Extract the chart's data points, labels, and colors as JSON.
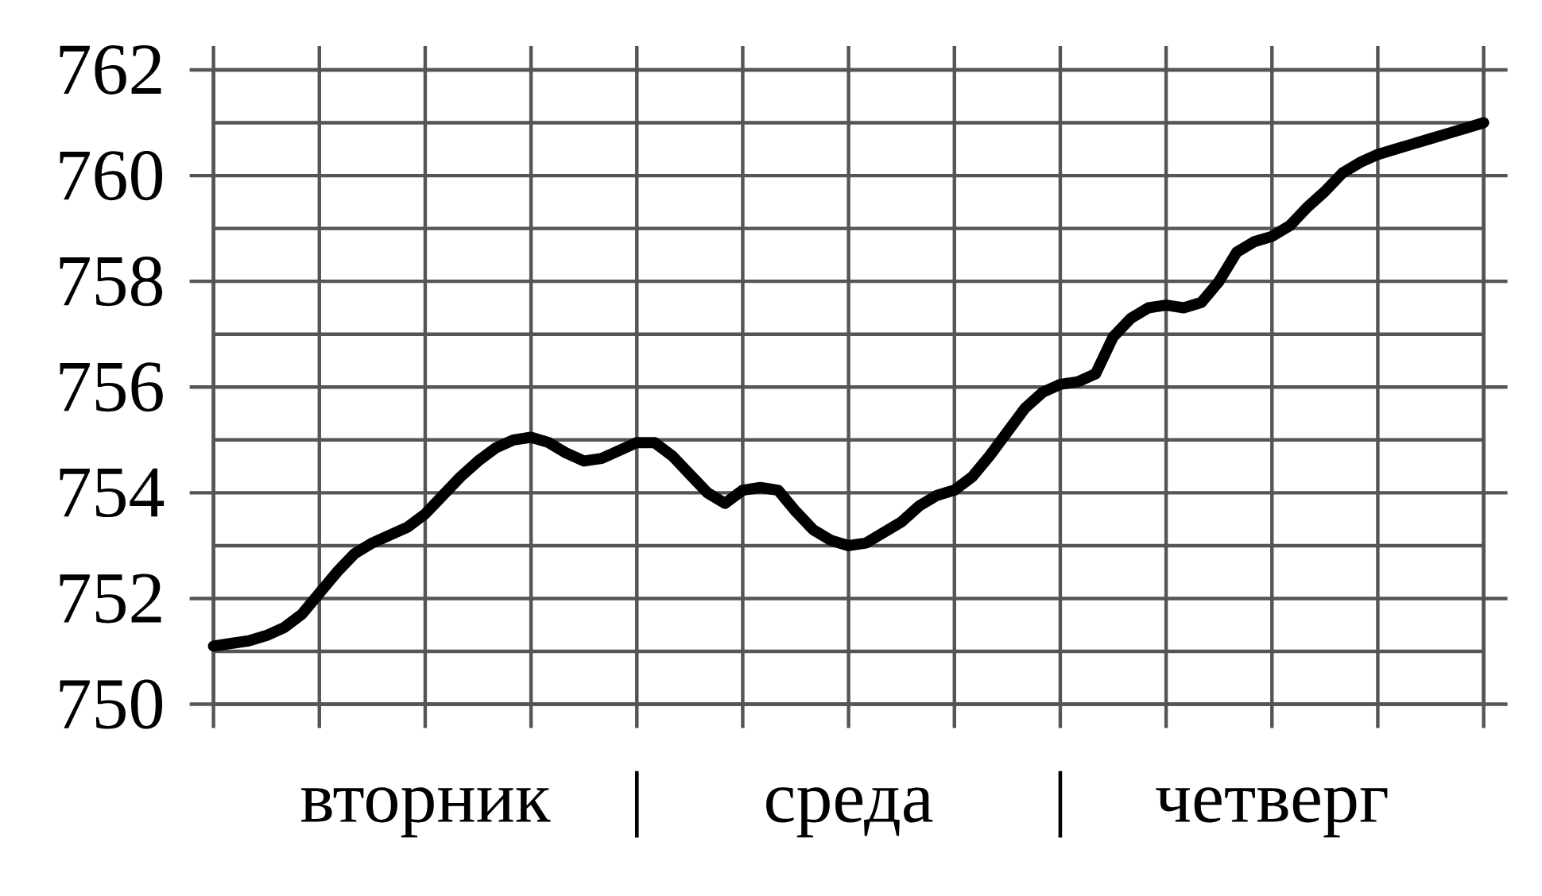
{
  "chart_data": {
    "type": "line",
    "categories": [
      null,
      null,
      null,
      null,
      null,
      null,
      null,
      null,
      null,
      null,
      null,
      null,
      "вторник",
      null,
      null,
      null,
      null,
      null,
      null,
      null,
      null,
      null,
      null,
      null,
      "|",
      null,
      null,
      null,
      null,
      null,
      null,
      null,
      null,
      null,
      null,
      null,
      "среда",
      null,
      null,
      null,
      null,
      null,
      null,
      null,
      null,
      null,
      null,
      null,
      "|",
      null,
      null,
      null,
      null,
      null,
      null,
      null,
      null,
      null,
      null,
      null,
      "четверг",
      null,
      null,
      null,
      null,
      null,
      null,
      null,
      null,
      null,
      null,
      null,
      null
    ],
    "series": [
      {
        "color": "#000000",
        "values": [
          751.1,
          751.15,
          751.2,
          751.3,
          751.45,
          751.7,
          752.1,
          752.5,
          752.85,
          753.05,
          753.2,
          753.35,
          753.6,
          753.95,
          754.3,
          754.6,
          754.85,
          755.0,
          755.05,
          754.95,
          754.75,
          754.6,
          754.65,
          754.8,
          754.95,
          754.95,
          754.7,
          754.35,
          754.0,
          753.8,
          754.05,
          754.1,
          754.05,
          753.65,
          753.3,
          753.1,
          753.0,
          753.05,
          753.25,
          753.45,
          753.75,
          753.95,
          754.05,
          754.3,
          754.7,
          755.15,
          755.6,
          755.9,
          756.05,
          756.1,
          756.25,
          756.95,
          757.3,
          757.5,
          757.55,
          757.5,
          757.6,
          758.0,
          758.55,
          758.75,
          758.85,
          759.05,
          759.4,
          759.7,
          760.05,
          760.25,
          760.4,
          760.5,
          760.6,
          760.7,
          760.8,
          760.9,
          761.0
        ]
      }
    ],
    "ylim": [
      750,
      762
    ],
    "yticks": [
      750,
      {
        "value": 751,
        "label": null
      },
      752,
      {
        "value": 753,
        "label": null
      },
      754,
      {
        "value": 755,
        "label": null
      },
      756,
      {
        "value": 757,
        "label": null
      },
      758,
      {
        "value": 759,
        "label": null
      },
      760,
      {
        "value": 761,
        "label": null
      },
      762
    ],
    "grid": true,
    "marker": "none",
    "line_style": "solid"
  }
}
